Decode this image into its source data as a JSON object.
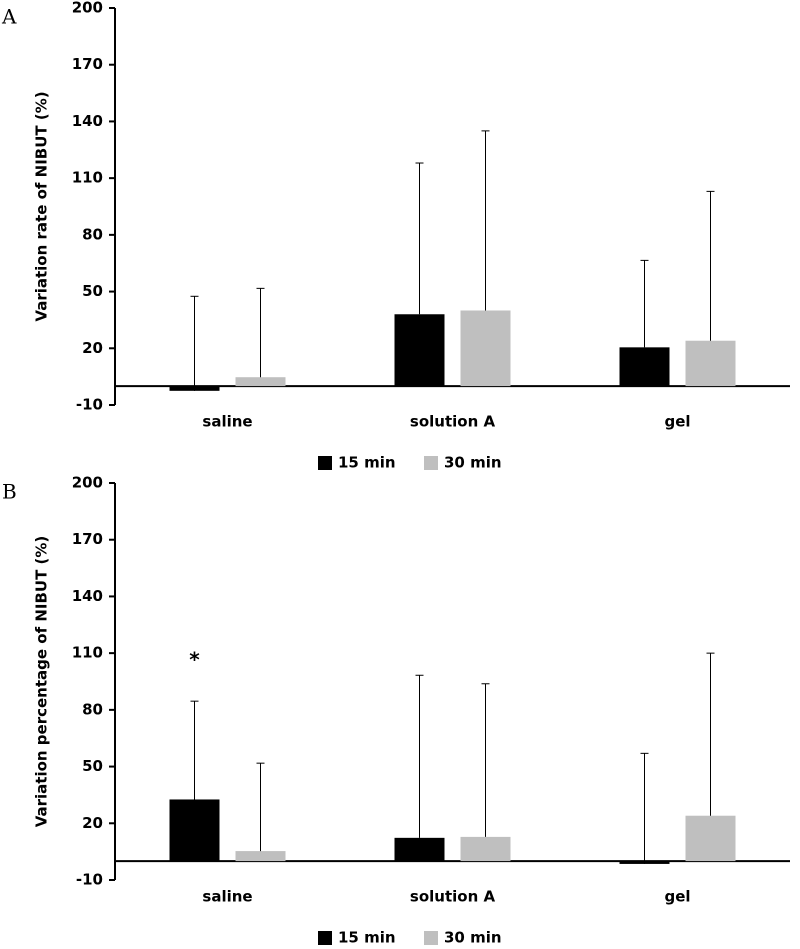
{
  "chart_data": [
    {
      "type": "bar",
      "panel": "A",
      "y_label": "Variation rate of NIBUT (%)",
      "categories": [
        "saline",
        "solution A",
        "gel"
      ],
      "series": [
        {
          "name": "15 min",
          "color": "#000000",
          "values": [
            -2.5,
            38,
            20.5
          ],
          "errors": [
            50,
            80,
            46
          ]
        },
        {
          "name": "30 min",
          "color": "#bfbfbf",
          "values": [
            4.7,
            40,
            24
          ],
          "errors": [
            47,
            95,
            79
          ]
        }
      ],
      "ylim": [
        -10,
        200
      ],
      "yticks": [
        -10,
        20,
        50,
        80,
        110,
        140,
        170,
        200
      ],
      "legend": "bottom"
    },
    {
      "type": "bar",
      "panel": "B",
      "y_label": "Variation percentage of NIBUT (%)",
      "categories": [
        "saline",
        "solution A",
        "gel"
      ],
      "series": [
        {
          "name": "15 min",
          "color": "#000000",
          "values": [
            32.6,
            12.3,
            -1.5
          ],
          "errors": [
            52,
            86,
            58.5
          ]
        },
        {
          "name": "30 min",
          "color": "#bfbfbf",
          "values": [
            5.3,
            12.8,
            24
          ],
          "errors": [
            46.5,
            81,
            86
          ]
        }
      ],
      "annotations": [
        {
          "text": "*"
        }
      ],
      "ylim": [
        -10,
        200
      ],
      "yticks": [
        -10,
        20,
        50,
        80,
        110,
        140,
        170,
        200
      ],
      "legend": "bottom"
    }
  ]
}
